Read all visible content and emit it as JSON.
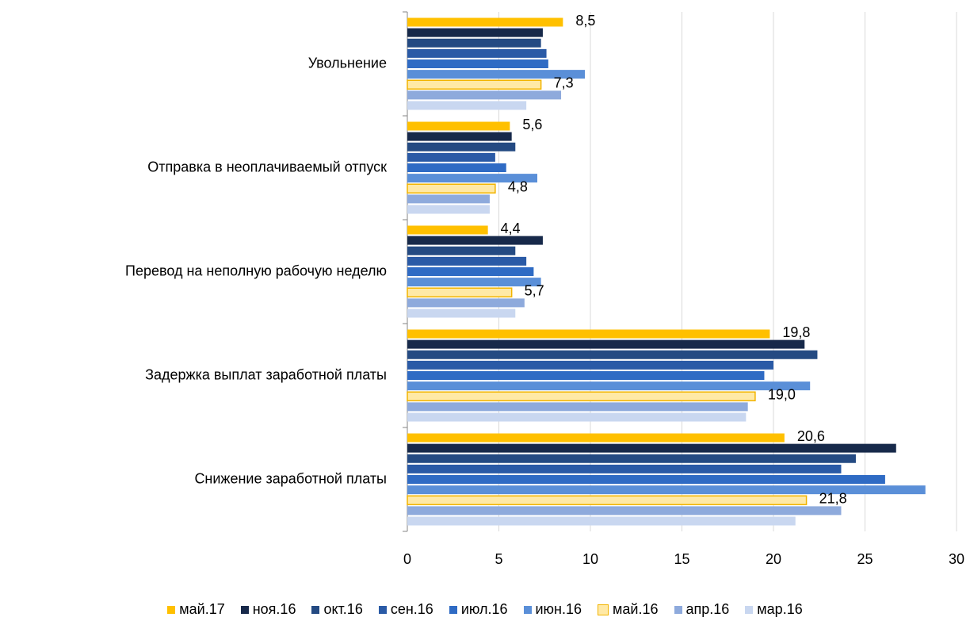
{
  "chart_data": {
    "type": "barh",
    "categories": [
      "Увольнение",
      "Отправка в неоплачиваемый отпуск",
      "Перевод на неполную рабочую неделю",
      "Задержка выплат заработной платы",
      "Снижение заработной платы"
    ],
    "series": [
      {
        "name": "май.17",
        "color": "#ffc000",
        "values": [
          8.5,
          5.6,
          4.4,
          19.8,
          20.6
        ],
        "value_labels": [
          "8,5",
          "5,6",
          "4,4",
          "19,8",
          "20,6"
        ]
      },
      {
        "name": "ноя.16",
        "color": "#17294a",
        "values": [
          7.4,
          5.7,
          7.4,
          21.7,
          26.7
        ]
      },
      {
        "name": "окт.16",
        "color": "#244a82",
        "values": [
          7.3,
          5.9,
          5.9,
          22.4,
          24.5
        ]
      },
      {
        "name": "сен.16",
        "color": "#2a5aa6",
        "values": [
          7.6,
          4.8,
          6.5,
          20.0,
          23.7
        ]
      },
      {
        "name": "июл.16",
        "color": "#2f6bc4",
        "values": [
          7.7,
          5.4,
          6.9,
          19.5,
          26.1
        ]
      },
      {
        "name": "июн.16",
        "color": "#5a8fd8",
        "values": [
          9.7,
          7.1,
          7.3,
          22.0,
          28.3
        ]
      },
      {
        "name": "май.16",
        "color": "#ffe9a6",
        "edgecolor": "#f2b400",
        "values": [
          7.3,
          4.8,
          5.7,
          19.0,
          21.8
        ],
        "value_labels": [
          "7,3",
          "4,8",
          "5,7",
          "19,0",
          "21,8"
        ]
      },
      {
        "name": "апр.16",
        "color": "#8eaadc",
        "values": [
          8.4,
          4.5,
          6.4,
          18.6,
          23.7
        ]
      },
      {
        "name": "мар.16",
        "color": "#c9d7f0",
        "values": [
          6.5,
          4.5,
          5.9,
          18.5,
          21.2
        ]
      }
    ],
    "xlim": [
      0,
      30
    ],
    "xticks": [
      0,
      5,
      10,
      15,
      20,
      25,
      30
    ],
    "grid": true,
    "legend": "bottom"
  }
}
